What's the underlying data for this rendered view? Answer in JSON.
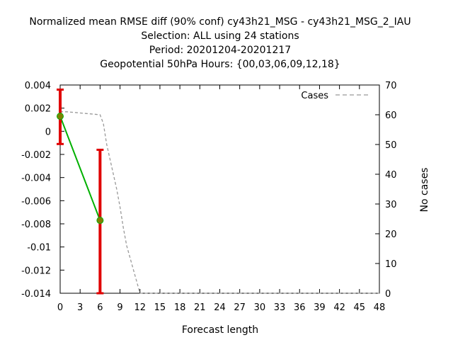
{
  "chart_data": {
    "type": "line",
    "title_lines": [
      "Normalized mean RMSE diff (90% conf) cy43h21_MSG - cy43h21_MSG_2_IAU",
      "Selection: ALL using    24 stations",
      "Period: 20201204-20201217",
      "Geopotential 50hPa   Hours: {00,03,06,09,12,18}"
    ],
    "xlabel": "Forecast length",
    "ylabel": "",
    "y2label": "No cases",
    "xlim": [
      0,
      48
    ],
    "ylim": [
      -0.014,
      0.004
    ],
    "y2lim": [
      0,
      70
    ],
    "x_ticks": [
      0,
      3,
      6,
      9,
      12,
      15,
      18,
      21,
      24,
      27,
      30,
      33,
      36,
      39,
      42,
      45,
      48
    ],
    "y_ticks": [
      0.004,
      0.002,
      0,
      -0.002,
      -0.004,
      -0.006,
      -0.008,
      -0.01,
      -0.012,
      -0.014
    ],
    "y_tick_labels": [
      "0.004",
      "0.002",
      "0",
      "-0.002",
      "-0.004",
      "-0.006",
      "-0.008",
      "-0.01",
      "-0.012",
      "-0.014"
    ],
    "y2_ticks": [
      0,
      10,
      20,
      30,
      40,
      50,
      60,
      70
    ],
    "grid": false,
    "legend_position": "top-right",
    "series": [
      {
        "x": [
          0,
          6
        ],
        "y": [
          0.0013,
          -0.0077
        ],
        "err_low": [
          -0.0011,
          -0.014
        ],
        "err_high": [
          0.0036,
          -0.0016
        ],
        "color": "#00b000",
        "marker_color": "#808000",
        "errbar_color": "#e00000",
        "style": "solid"
      },
      {
        "name": "Cases",
        "axis": "y2",
        "x": [
          0,
          1,
          2,
          3,
          4,
          5,
          6,
          6.5,
          7,
          7.5,
          8,
          8.5,
          9,
          9.5,
          10,
          11,
          12,
          48
        ],
        "y": [
          61,
          61,
          60.8,
          60.6,
          60.4,
          60.2,
          60,
          57,
          50,
          45,
          40,
          35,
          29,
          22,
          16,
          8,
          0,
          0
        ],
        "color": "#999999",
        "style": "dashed"
      }
    ]
  }
}
